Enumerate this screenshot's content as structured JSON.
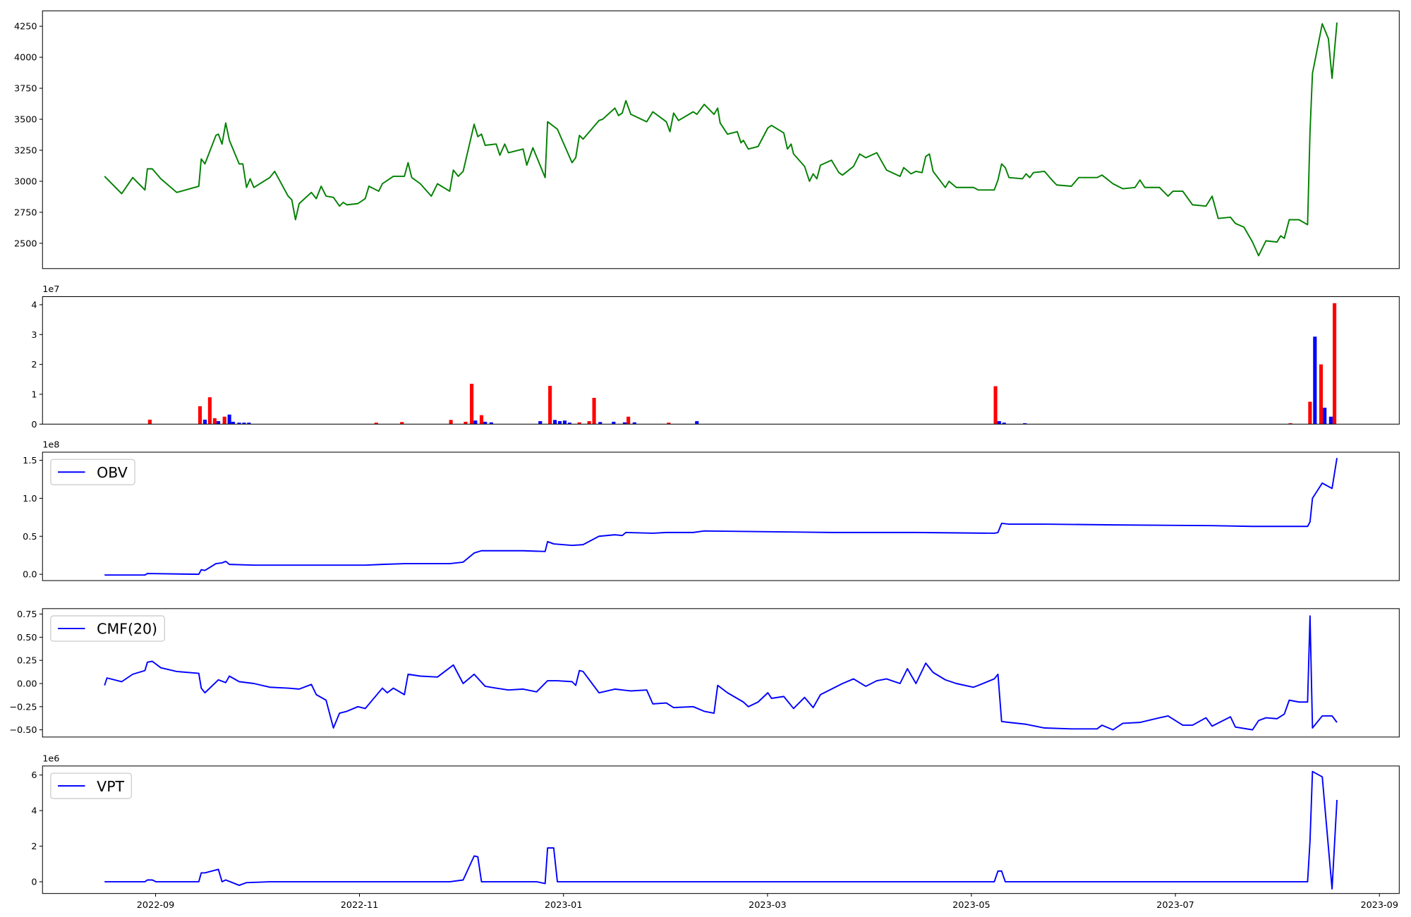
{
  "chart_data": [
    {
      "type": "line",
      "color": "green",
      "xlim": [
        2022.5743,
        2023.6829
      ],
      "ylim": [
        2296,
        4374
      ],
      "yticks": [
        2500,
        2750,
        3000,
        3250,
        3500,
        3750,
        4000,
        4250
      ],
      "x": [
        2022.625,
        2022.639,
        2022.648,
        2022.658,
        2022.66,
        2022.664,
        2022.671,
        2022.684,
        2022.702,
        2022.704,
        2022.707,
        2022.716,
        2022.718,
        2022.721,
        2022.724,
        2022.727,
        2022.735,
        2022.738,
        2022.741,
        2022.744,
        2022.747,
        2022.76,
        2022.764,
        2022.775,
        2022.778,
        2022.781,
        2022.784,
        2022.794,
        2022.798,
        2022.802,
        2022.806,
        2022.812,
        2022.817,
        2022.82,
        2022.823,
        2022.832,
        2022.838,
        2022.841,
        2022.849,
        2022.852,
        2022.861,
        2022.87,
        2022.873,
        2022.876,
        2022.883,
        2022.892,
        2022.897,
        2022.907,
        2022.91,
        2022.914,
        2022.918,
        2022.927,
        2022.93,
        2022.933,
        2022.936,
        2022.945,
        2022.948,
        2022.952,
        2022.955,
        2022.967,
        2022.97,
        2022.975,
        2022.985,
        2022.987,
        2022.995,
        2023.007,
        2023.01,
        2023.013,
        2023.016,
        2023.029,
        2023.032,
        2023.042,
        2023.045,
        2023.048,
        2023.051,
        2023.055,
        2023.068,
        2023.073,
        2023.084,
        2023.087,
        2023.09,
        2023.094,
        2023.106,
        2023.109,
        2023.115,
        2023.123,
        2023.126,
        2023.128,
        2023.134,
        2023.142,
        2023.145,
        2023.147,
        2023.151,
        2023.159,
        2023.167,
        2023.17,
        2023.18,
        2023.183,
        2023.186,
        2023.188,
        2023.197,
        2023.201,
        2023.204,
        2023.207,
        2023.21,
        2023.219,
        2023.225,
        2023.228,
        2023.237,
        2023.242,
        2023.247,
        2023.256,
        2023.264,
        2023.275,
        2023.278,
        2023.284,
        2023.288,
        2023.293,
        2023.296,
        2023.299,
        2023.302,
        2023.312,
        2023.315,
        2023.321,
        2023.335,
        2023.339,
        2023.352,
        2023.355,
        2023.358,
        2023.361,
        2023.364,
        2023.375,
        2023.378,
        2023.381,
        2023.384,
        2023.393,
        2023.4,
        2023.403,
        2023.415,
        2023.421,
        2023.436,
        2023.44,
        2023.449,
        2023.457,
        2023.467,
        2023.471,
        2023.475,
        2023.487,
        2023.494,
        2023.498,
        2023.506,
        2023.514,
        2023.525,
        2023.53,
        2023.535,
        2023.545,
        2023.549,
        2023.556,
        2023.563,
        2023.568,
        2023.574,
        2023.583,
        2023.586,
        2023.589,
        2023.593,
        2023.601,
        2023.608,
        2023.61,
        2023.612,
        2023.62,
        2023.625,
        2023.628,
        2023.632
      ],
      "values": [
        3040,
        2900,
        3030,
        2930,
        3100,
        3100,
        3020,
        2910,
        2960,
        3180,
        3140,
        3370,
        3380,
        3300,
        3470,
        3330,
        3140,
        3140,
        2950,
        3020,
        2950,
        3030,
        3080,
        2880,
        2850,
        2690,
        2820,
        2910,
        2860,
        2960,
        2880,
        2870,
        2800,
        2830,
        2810,
        2820,
        2860,
        2960,
        2920,
        2980,
        3040,
        3040,
        3150,
        3030,
        2980,
        2880,
        2980,
        2920,
        3090,
        3040,
        3080,
        3460,
        3360,
        3380,
        3290,
        3300,
        3210,
        3300,
        3230,
        3260,
        3130,
        3270,
        3030,
        3480,
        3420,
        3150,
        3190,
        3370,
        3340,
        3490,
        3500,
        3590,
        3530,
        3550,
        3650,
        3540,
        3480,
        3560,
        3480,
        3400,
        3550,
        3490,
        3560,
        3540,
        3620,
        3540,
        3590,
        3470,
        3380,
        3400,
        3310,
        3330,
        3260,
        3280,
        3430,
        3450,
        3390,
        3260,
        3300,
        3220,
        3120,
        3000,
        3060,
        3020,
        3130,
        3170,
        3070,
        3050,
        3120,
        3220,
        3190,
        3230,
        3090,
        3040,
        3110,
        3060,
        3080,
        3070,
        3200,
        3220,
        3080,
        2950,
        3000,
        2950,
        2950,
        2930,
        2930,
        3010,
        3140,
        3110,
        3030,
        3020,
        3060,
        3030,
        3070,
        3080,
        3000,
        2970,
        2960,
        3030,
        3030,
        3050,
        2980,
        2940,
        2950,
        3010,
        2950,
        2950,
        2880,
        2920,
        2920,
        2810,
        2800,
        2880,
        2700,
        2710,
        2660,
        2630,
        2510,
        2400,
        2520,
        2510,
        2560,
        2540,
        2690,
        2690,
        2650,
        3400,
        3870,
        4270,
        4150,
        3830,
        4280
      ]
    },
    {
      "type": "bar",
      "offset_label": "1e7",
      "xlim": [
        2022.5743,
        2023.6829
      ],
      "ylim": [
        0,
        42700000
      ],
      "yticks": [
        0,
        {
          "value": 10000000,
          "label": "1"
        },
        {
          "value": 20000000,
          "label": "2"
        },
        {
          "value": 30000000,
          "label": "3"
        },
        {
          "value": 40000000,
          "label": "4"
        }
      ],
      "x": [
        2022.662,
        2022.703,
        2022.707,
        2022.711,
        2022.715,
        2022.718,
        2022.723,
        2022.727,
        2022.73,
        2022.735,
        2022.739,
        2022.743,
        2022.847,
        2022.868,
        2022.908,
        2022.92,
        2022.925,
        2022.928,
        2022.933,
        2022.936,
        2022.941,
        2022.981,
        2022.989,
        2022.993,
        2022.997,
        2023.001,
        2023.005,
        2023.013,
        2023.021,
        2023.025,
        2023.03,
        2023.041,
        2023.05,
        2023.053,
        2023.058,
        2023.086,
        2023.109,
        2023.353,
        2023.356,
        2023.36,
        2023.377,
        2023.594,
        2023.61,
        2023.614,
        2023.619,
        2023.622,
        2023.627,
        2023.63
      ],
      "values": [
        1500000,
        6000000,
        1500000,
        9000000,
        2000000,
        1000000,
        2500000,
        3200000,
        800000,
        500000,
        500000,
        500000,
        500000,
        700000,
        1400000,
        800000,
        13500000,
        1200000,
        3000000,
        800000,
        600000,
        1000000,
        12800000,
        1400000,
        1000000,
        1200000,
        500000,
        600000,
        1000000,
        8800000,
        700000,
        800000,
        600000,
        2500000,
        600000,
        500000,
        1000000,
        12700000,
        1000000,
        500000,
        300000,
        300000,
        7500000,
        29300000,
        20000000,
        5500000,
        2500000,
        40500000
      ],
      "colors": [
        "red",
        "red",
        "blue",
        "red",
        "red",
        "blue",
        "red",
        "blue",
        "blue",
        "blue",
        "blue",
        "blue",
        "red",
        "red",
        "red",
        "red",
        "red",
        "blue",
        "red",
        "blue",
        "blue",
        "blue",
        "red",
        "blue",
        "blue",
        "blue",
        "blue",
        "red",
        "red",
        "red",
        "blue",
        "blue",
        "blue",
        "red",
        "blue",
        "red",
        "blue",
        "red",
        "blue",
        "blue",
        "blue",
        "red",
        "red",
        "blue",
        "red",
        "blue",
        "blue",
        "red"
      ]
    },
    {
      "type": "line",
      "offset_label": "1e8",
      "legend": "upper left",
      "xlim": [
        2022.5743,
        2023.6829
      ],
      "ylim": [
        -8300000,
        160700000
      ],
      "yticks": [
        {
          "value": 0,
          "label": "0.0"
        },
        {
          "value": 50000000,
          "label": "0.5"
        },
        {
          "value": 100000000,
          "label": "1.0"
        },
        {
          "value": 150000000,
          "label": "1.5"
        }
      ],
      "x": [
        2022.625,
        2022.658,
        2022.66,
        2022.702,
        2022.704,
        2022.707,
        2022.716,
        2022.721,
        2022.724,
        2022.727,
        2022.747,
        2022.784,
        2022.838,
        2022.852,
        2022.87,
        2022.907,
        2022.918,
        2022.927,
        2022.933,
        2022.967,
        2022.985,
        2022.987,
        2022.992,
        2023.007,
        2023.016,
        2023.029,
        2023.042,
        2023.048,
        2023.051,
        2023.073,
        2023.084,
        2023.106,
        2023.115,
        2023.167,
        2023.219,
        2023.288,
        2023.352,
        2023.355,
        2023.358,
        2023.364,
        2023.393,
        2023.449,
        2023.53,
        2023.563,
        2023.608,
        2023.61,
        2023.612,
        2023.62,
        2023.628,
        2023.632
      ],
      "series": [
        {
          "name": "OBV",
          "color": "blue",
          "values": [
            -1000000,
            -1000000,
            1000000,
            0,
            6000000,
            5000000,
            14000000,
            15000000,
            17000000,
            13000000,
            12000000,
            12000000,
            12000000,
            13000000,
            14000000,
            14000000,
            16000000,
            28000000,
            31000000,
            31000000,
            30000000,
            43000000,
            40000000,
            38000000,
            39000000,
            50000000,
            52000000,
            51000000,
            55000000,
            54000000,
            55000000,
            55000000,
            57000000,
            56000000,
            55000000,
            55000000,
            54000000,
            55000000,
            67000000,
            66000000,
            66000000,
            65000000,
            64000000,
            63000000,
            63000000,
            69000000,
            100000000,
            120000000,
            113000000,
            153000000
          ]
        }
      ]
    },
    {
      "type": "line",
      "legend": "upper left",
      "xlim": [
        2022.5743,
        2023.6829
      ],
      "ylim": [
        -0.578,
        0.809
      ],
      "yticks": [
        {
          "value": -0.5,
          "label": "−0.50"
        },
        {
          "value": -0.25,
          "label": "−0.25"
        },
        {
          "value": 0,
          "label": "0.00"
        },
        {
          "value": 0.25,
          "label": "0.25"
        },
        {
          "value": 0.5,
          "label": "0.50"
        },
        {
          "value": 0.75,
          "label": "0.75"
        }
      ],
      "x": [
        2022.625,
        2022.627,
        2022.639,
        2022.648,
        2022.658,
        2022.66,
        2022.664,
        2022.671,
        2022.684,
        2022.702,
        2022.704,
        2022.707,
        2022.718,
        2022.724,
        2022.727,
        2022.735,
        2022.747,
        2022.76,
        2022.775,
        2022.784,
        2022.794,
        2022.798,
        2022.806,
        2022.812,
        2022.817,
        2022.823,
        2022.832,
        2022.838,
        2022.852,
        2022.856,
        2022.861,
        2022.87,
        2022.873,
        2022.883,
        2022.897,
        2022.91,
        2022.918,
        2022.927,
        2022.936,
        2022.945,
        2022.955,
        2022.967,
        2022.978,
        2022.987,
        2022.995,
        2023.007,
        2023.01,
        2023.013,
        2023.016,
        2023.029,
        2023.042,
        2023.055,
        2023.068,
        2023.073,
        2023.084,
        2023.09,
        2023.106,
        2023.115,
        2023.123,
        2023.126,
        2023.134,
        2023.147,
        2023.151,
        2023.159,
        2023.167,
        2023.17,
        2023.18,
        2023.188,
        2023.197,
        2023.204,
        2023.21,
        2023.219,
        2023.228,
        2023.237,
        2023.247,
        2023.256,
        2023.264,
        2023.275,
        2023.281,
        2023.288,
        2023.296,
        2023.302,
        2023.312,
        2023.321,
        2023.335,
        2023.339,
        2023.352,
        2023.355,
        2023.358,
        2023.364,
        2023.378,
        2023.393,
        2023.415,
        2023.436,
        2023.44,
        2023.449,
        2023.457,
        2023.471,
        2023.487,
        2023.494,
        2023.506,
        2023.514,
        2023.525,
        2023.53,
        2023.545,
        2023.549,
        2023.563,
        2023.568,
        2023.574,
        2023.583,
        2023.589,
        2023.593,
        2023.601,
        2023.608,
        2023.61,
        2023.612,
        2023.62,
        2023.628,
        2023.632
      ],
      "series": [
        {
          "name": "CMF(20)",
          "color": "blue",
          "values": [
            -0.02,
            0.06,
            0.02,
            0.1,
            0.14,
            0.23,
            0.24,
            0.17,
            0.13,
            0.11,
            -0.05,
            -0.1,
            0.04,
            0.01,
            0.08,
            0.02,
            0.0,
            -0.04,
            -0.05,
            -0.06,
            -0.01,
            -0.12,
            -0.18,
            -0.48,
            -0.32,
            -0.3,
            -0.25,
            -0.27,
            -0.05,
            -0.1,
            -0.05,
            -0.12,
            0.1,
            0.08,
            0.07,
            0.2,
            0.0,
            0.1,
            -0.03,
            -0.05,
            -0.07,
            -0.06,
            -0.09,
            0.03,
            0.03,
            0.02,
            -0.02,
            0.14,
            0.13,
            -0.1,
            -0.06,
            -0.08,
            -0.07,
            -0.22,
            -0.21,
            -0.26,
            -0.25,
            -0.3,
            -0.32,
            -0.02,
            -0.1,
            -0.2,
            -0.25,
            -0.2,
            -0.1,
            -0.16,
            -0.14,
            -0.27,
            -0.15,
            -0.26,
            -0.12,
            -0.06,
            0.0,
            0.05,
            -0.03,
            0.03,
            0.05,
            0.0,
            0.16,
            0.0,
            0.22,
            0.12,
            0.04,
            0.0,
            -0.04,
            -0.02,
            0.05,
            0.1,
            -0.41,
            -0.42,
            -0.44,
            -0.48,
            -0.49,
            -0.49,
            -0.45,
            -0.5,
            -0.43,
            -0.42,
            -0.37,
            -0.35,
            -0.45,
            -0.45,
            -0.37,
            -0.46,
            -0.36,
            -0.47,
            -0.5,
            -0.4,
            -0.37,
            -0.38,
            -0.33,
            -0.18,
            -0.2,
            -0.2,
            0.73,
            -0.48,
            -0.35,
            -0.35,
            -0.42
          ]
        }
      ]
    },
    {
      "type": "line",
      "offset_label": "1e6",
      "legend": "upper left",
      "xlim": [
        2022.5743,
        2023.6829
      ],
      "ylim": [
        -660000,
        6510000
      ],
      "yticks": [
        0,
        {
          "value": 2000000,
          "label": "2"
        },
        {
          "value": 4000000,
          "label": "4"
        },
        {
          "value": 6000000,
          "label": "6"
        }
      ],
      "xticks": [
        {
          "value": 2022.6667,
          "label": "2022-09"
        },
        {
          "value": 2022.8333,
          "label": "2022-11"
        },
        {
          "value": 2023.0,
          "label": "2023-01"
        },
        {
          "value": 2023.1667,
          "label": "2023-03"
        },
        {
          "value": 2023.3333,
          "label": "2023-05"
        },
        {
          "value": 2023.5,
          "label": "2023-07"
        },
        {
          "value": 2023.6667,
          "label": "2023-09"
        }
      ],
      "x": [
        2022.625,
        2022.658,
        2022.66,
        2022.664,
        2022.667,
        2022.702,
        2022.704,
        2022.707,
        2022.718,
        2022.721,
        2022.724,
        2022.735,
        2022.741,
        2022.76,
        2022.838,
        2022.907,
        2022.918,
        2022.927,
        2022.93,
        2022.933,
        2022.945,
        2022.978,
        2022.985,
        2022.987,
        2022.992,
        2022.995,
        2023.013,
        2023.042,
        2023.352,
        2023.355,
        2023.358,
        2023.361,
        2023.608,
        2023.61,
        2023.612,
        2023.62,
        2023.628,
        2023.632
      ],
      "series": [
        {
          "name": "VPT",
          "color": "blue",
          "values": [
            0,
            0,
            100000,
            100000,
            0,
            0,
            500000,
            500000,
            700000,
            0,
            100000,
            -200000,
            -50000,
            0,
            0,
            0,
            100000,
            1450000,
            1400000,
            0,
            0,
            0,
            -100000,
            1900000,
            1900000,
            0,
            0,
            0,
            0,
            600000,
            600000,
            0,
            0,
            2300000,
            6200000,
            5900000,
            -400000,
            4600000
          ]
        }
      ]
    }
  ]
}
